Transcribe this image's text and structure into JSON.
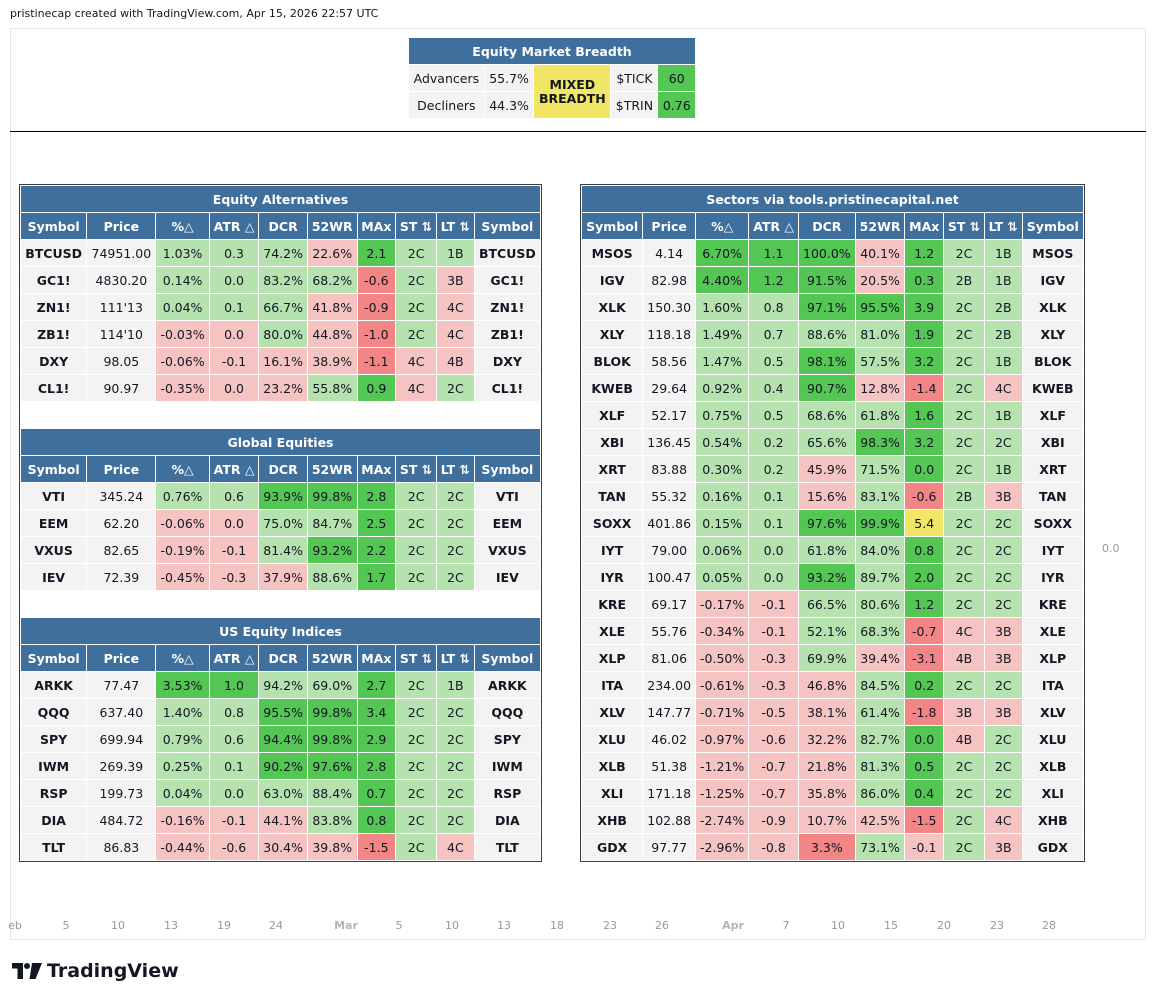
{
  "header": "pristinecap created with TradingView.com, Apr 15, 2026 22:57 UTC",
  "brand": "TradingView",
  "zero_label": "0.0",
  "colors": {
    "header_bg": "#3f6f9c",
    "green_light": "#b6e2b0",
    "green": "#53c653",
    "red_light": "#f6c3c3",
    "red": "#f28686",
    "yellow": "#f1e666",
    "neutral": "#f3f3f3"
  },
  "breadth": {
    "title": "Equity Market Breadth",
    "advancers_label": "Advancers",
    "advancers": "55.7%",
    "decliners_label": "Decliners",
    "decliners": "44.3%",
    "status_l1": "MIXED",
    "status_l2": "BREADTH",
    "tick_label": "$TICK",
    "tick": "60",
    "trin_label": "$TRIN",
    "trin": "0.76"
  },
  "columns": [
    "Symbol",
    "Price",
    "%△",
    "ATR △",
    "DCR",
    "52WR",
    "MAx",
    "ST ⇅",
    "LT ⇅",
    "Symbol"
  ],
  "left_sections": [
    {
      "title": "Equity Alternatives",
      "rows": [
        {
          "sym": "BTCUSD",
          "price": "74951.00",
          "vals": [
            "1.03%",
            "0.3",
            "74.2%",
            "22.6%",
            "2.1",
            "2C",
            "1B"
          ],
          "c": [
            "g1",
            "g1",
            "g1",
            "r1",
            "g2",
            "g1",
            "g1"
          ]
        },
        {
          "sym": "GC1!",
          "price": "4830.20",
          "vals": [
            "0.14%",
            "0.0",
            "83.2%",
            "68.2%",
            "-0.6",
            "2C",
            "3B"
          ],
          "c": [
            "g1",
            "g1",
            "g1",
            "g1",
            "r2",
            "g1",
            "r1"
          ]
        },
        {
          "sym": "ZN1!",
          "price": "111'13",
          "vals": [
            "0.04%",
            "0.1",
            "66.7%",
            "41.8%",
            "-0.9",
            "2C",
            "4C"
          ],
          "c": [
            "g1",
            "g1",
            "g1",
            "r1",
            "r2",
            "g1",
            "r1"
          ]
        },
        {
          "sym": "ZB1!",
          "price": "114'10",
          "vals": [
            "-0.03%",
            "0.0",
            "80.0%",
            "44.8%",
            "-1.0",
            "2C",
            "4C"
          ],
          "c": [
            "r1",
            "r1",
            "g1",
            "r1",
            "r2",
            "g1",
            "r1"
          ]
        },
        {
          "sym": "DXY",
          "price": "98.05",
          "vals": [
            "-0.06%",
            "-0.1",
            "16.1%",
            "38.9%",
            "-1.1",
            "4C",
            "4B"
          ],
          "c": [
            "r1",
            "r1",
            "r1",
            "r1",
            "r2",
            "r1",
            "r1"
          ]
        },
        {
          "sym": "CL1!",
          "price": "90.97",
          "vals": [
            "-0.35%",
            "0.0",
            "23.2%",
            "55.8%",
            "0.9",
            "4C",
            "2C"
          ],
          "c": [
            "r1",
            "r1",
            "r1",
            "g1",
            "g2",
            "r1",
            "g1"
          ]
        }
      ]
    },
    {
      "title": "Global Equities",
      "rows": [
        {
          "sym": "VTI",
          "price": "345.24",
          "vals": [
            "0.76%",
            "0.6",
            "93.9%",
            "99.8%",
            "2.8",
            "2C",
            "2C"
          ],
          "c": [
            "g1",
            "g1",
            "g2",
            "g2",
            "g2",
            "g1",
            "g1"
          ]
        },
        {
          "sym": "EEM",
          "price": "62.20",
          "vals": [
            "-0.06%",
            "0.0",
            "75.0%",
            "84.7%",
            "2.5",
            "2C",
            "2C"
          ],
          "c": [
            "r1",
            "r1",
            "g1",
            "g1",
            "g2",
            "g1",
            "g1"
          ]
        },
        {
          "sym": "VXUS",
          "price": "82.65",
          "vals": [
            "-0.19%",
            "-0.1",
            "81.4%",
            "93.2%",
            "2.2",
            "2C",
            "2C"
          ],
          "c": [
            "r1",
            "r1",
            "g1",
            "g2",
            "g2",
            "g1",
            "g1"
          ]
        },
        {
          "sym": "IEV",
          "price": "72.39",
          "vals": [
            "-0.45%",
            "-0.3",
            "37.9%",
            "88.6%",
            "1.7",
            "2C",
            "2C"
          ],
          "c": [
            "r1",
            "r1",
            "r1",
            "g1",
            "g2",
            "g1",
            "g1"
          ]
        }
      ]
    },
    {
      "title": "US Equity Indices",
      "rows": [
        {
          "sym": "ARKK",
          "price": "77.47",
          "vals": [
            "3.53%",
            "1.0",
            "94.2%",
            "69.0%",
            "2.7",
            "2C",
            "1B"
          ],
          "c": [
            "g2",
            "g2",
            "g1",
            "g1",
            "g2",
            "g1",
            "g1"
          ]
        },
        {
          "sym": "QQQ",
          "price": "637.40",
          "vals": [
            "1.40%",
            "0.8",
            "95.5%",
            "99.8%",
            "3.4",
            "2C",
            "2C"
          ],
          "c": [
            "g1",
            "g1",
            "g2",
            "g2",
            "g2",
            "g1",
            "g1"
          ]
        },
        {
          "sym": "SPY",
          "price": "699.94",
          "vals": [
            "0.79%",
            "0.6",
            "94.4%",
            "99.8%",
            "2.9",
            "2C",
            "2C"
          ],
          "c": [
            "g1",
            "g1",
            "g2",
            "g2",
            "g2",
            "g1",
            "g1"
          ]
        },
        {
          "sym": "IWM",
          "price": "269.39",
          "vals": [
            "0.25%",
            "0.1",
            "90.2%",
            "97.6%",
            "2.8",
            "2C",
            "2C"
          ],
          "c": [
            "g1",
            "g1",
            "g2",
            "g2",
            "g2",
            "g1",
            "g1"
          ]
        },
        {
          "sym": "RSP",
          "price": "199.73",
          "vals": [
            "0.04%",
            "0.0",
            "63.0%",
            "88.4%",
            "0.7",
            "2C",
            "2C"
          ],
          "c": [
            "g1",
            "g1",
            "g1",
            "g1",
            "g2",
            "g1",
            "g1"
          ]
        },
        {
          "sym": "DIA",
          "price": "484.72",
          "vals": [
            "-0.16%",
            "-0.1",
            "44.1%",
            "83.8%",
            "0.8",
            "2C",
            "2C"
          ],
          "c": [
            "r1",
            "r1",
            "r1",
            "g1",
            "g2",
            "g1",
            "g1"
          ]
        },
        {
          "sym": "TLT",
          "price": "86.83",
          "vals": [
            "-0.44%",
            "-0.6",
            "30.4%",
            "39.8%",
            "-1.5",
            "2C",
            "4C"
          ],
          "c": [
            "r1",
            "r1",
            "r1",
            "r1",
            "r2",
            "g1",
            "r1"
          ]
        }
      ]
    }
  ],
  "sectors": {
    "title": "Sectors via tools.pristinecapital.net",
    "rows": [
      {
        "sym": "MSOS",
        "price": "4.14",
        "vals": [
          "6.70%",
          "1.1",
          "100.0%",
          "40.1%",
          "1.2",
          "2C",
          "1B"
        ],
        "c": [
          "g2",
          "g2",
          "g2",
          "r1",
          "g2",
          "g1",
          "g1"
        ]
      },
      {
        "sym": "IGV",
        "price": "82.98",
        "vals": [
          "4.40%",
          "1.2",
          "91.5%",
          "20.5%",
          "0.3",
          "2B",
          "1B"
        ],
        "c": [
          "g2",
          "g2",
          "g2",
          "r1",
          "g2",
          "g1",
          "g1"
        ]
      },
      {
        "sym": "XLK",
        "price": "150.30",
        "vals": [
          "1.60%",
          "0.8",
          "97.1%",
          "95.5%",
          "3.9",
          "2C",
          "2B"
        ],
        "c": [
          "g1",
          "g1",
          "g2",
          "g2",
          "g2",
          "g1",
          "g1"
        ]
      },
      {
        "sym": "XLY",
        "price": "118.18",
        "vals": [
          "1.49%",
          "0.7",
          "88.6%",
          "81.0%",
          "1.9",
          "2C",
          "2B"
        ],
        "c": [
          "g1",
          "g1",
          "g1",
          "g1",
          "g2",
          "g1",
          "g1"
        ]
      },
      {
        "sym": "BLOK",
        "price": "58.56",
        "vals": [
          "1.47%",
          "0.5",
          "98.1%",
          "57.5%",
          "3.2",
          "2C",
          "1B"
        ],
        "c": [
          "g1",
          "g1",
          "g2",
          "g1",
          "g2",
          "g1",
          "g1"
        ]
      },
      {
        "sym": "KWEB",
        "price": "29.64",
        "vals": [
          "0.92%",
          "0.4",
          "90.7%",
          "12.8%",
          "-1.4",
          "2C",
          "4C"
        ],
        "c": [
          "g1",
          "g1",
          "g2",
          "r1",
          "r2",
          "g1",
          "r1"
        ]
      },
      {
        "sym": "XLF",
        "price": "52.17",
        "vals": [
          "0.75%",
          "0.5",
          "68.6%",
          "61.8%",
          "1.6",
          "2C",
          "1B"
        ],
        "c": [
          "g1",
          "g1",
          "g1",
          "g1",
          "g2",
          "g1",
          "g1"
        ]
      },
      {
        "sym": "XBI",
        "price": "136.45",
        "vals": [
          "0.54%",
          "0.2",
          "65.6%",
          "98.3%",
          "3.2",
          "2C",
          "2C"
        ],
        "c": [
          "g1",
          "g1",
          "g1",
          "g2",
          "g2",
          "g1",
          "g1"
        ]
      },
      {
        "sym": "XRT",
        "price": "83.88",
        "vals": [
          "0.30%",
          "0.2",
          "45.9%",
          "71.5%",
          "0.0",
          "2C",
          "1B"
        ],
        "c": [
          "g1",
          "g1",
          "r1",
          "g1",
          "g2",
          "g1",
          "g1"
        ]
      },
      {
        "sym": "TAN",
        "price": "55.32",
        "vals": [
          "0.16%",
          "0.1",
          "15.6%",
          "83.1%",
          "-0.6",
          "2B",
          "3B"
        ],
        "c": [
          "g1",
          "g1",
          "r1",
          "g1",
          "r2",
          "g1",
          "r1"
        ]
      },
      {
        "sym": "SOXX",
        "price": "401.86",
        "vals": [
          "0.15%",
          "0.1",
          "97.6%",
          "99.9%",
          "5.4",
          "2C",
          "2C"
        ],
        "c": [
          "g1",
          "g1",
          "g2",
          "g2",
          "y1",
          "g1",
          "g1"
        ]
      },
      {
        "sym": "IYT",
        "price": "79.00",
        "vals": [
          "0.06%",
          "0.0",
          "61.8%",
          "84.0%",
          "0.8",
          "2C",
          "2C"
        ],
        "c": [
          "g1",
          "g1",
          "g1",
          "g1",
          "g2",
          "g1",
          "g1"
        ]
      },
      {
        "sym": "IYR",
        "price": "100.47",
        "vals": [
          "0.05%",
          "0.0",
          "93.2%",
          "89.7%",
          "2.0",
          "2C",
          "2C"
        ],
        "c": [
          "g1",
          "g1",
          "g2",
          "g1",
          "g2",
          "g1",
          "g1"
        ]
      },
      {
        "sym": "KRE",
        "price": "69.17",
        "vals": [
          "-0.17%",
          "-0.1",
          "66.5%",
          "80.6%",
          "1.2",
          "2C",
          "2C"
        ],
        "c": [
          "r1",
          "r1",
          "g1",
          "g1",
          "g2",
          "g1",
          "g1"
        ]
      },
      {
        "sym": "XLE",
        "price": "55.76",
        "vals": [
          "-0.34%",
          "-0.1",
          "52.1%",
          "68.3%",
          "-0.7",
          "4C",
          "3B"
        ],
        "c": [
          "r1",
          "r1",
          "g1",
          "g1",
          "r2",
          "r1",
          "r1"
        ]
      },
      {
        "sym": "XLP",
        "price": "81.06",
        "vals": [
          "-0.50%",
          "-0.3",
          "69.9%",
          "39.4%",
          "-3.1",
          "4B",
          "3B"
        ],
        "c": [
          "r1",
          "r1",
          "g1",
          "r1",
          "r2",
          "r1",
          "r1"
        ]
      },
      {
        "sym": "ITA",
        "price": "234.00",
        "vals": [
          "-0.61%",
          "-0.3",
          "46.8%",
          "84.5%",
          "0.2",
          "2C",
          "2C"
        ],
        "c": [
          "r1",
          "r1",
          "r1",
          "g1",
          "g2",
          "g1",
          "g1"
        ]
      },
      {
        "sym": "XLV",
        "price": "147.77",
        "vals": [
          "-0.71%",
          "-0.5",
          "38.1%",
          "61.4%",
          "-1.8",
          "3B",
          "3B"
        ],
        "c": [
          "r1",
          "r1",
          "r1",
          "g1",
          "r2",
          "r1",
          "r1"
        ]
      },
      {
        "sym": "XLU",
        "price": "46.02",
        "vals": [
          "-0.97%",
          "-0.6",
          "32.2%",
          "82.7%",
          "0.0",
          "4B",
          "2C"
        ],
        "c": [
          "r1",
          "r1",
          "r1",
          "g1",
          "g2",
          "r1",
          "g1"
        ]
      },
      {
        "sym": "XLB",
        "price": "51.38",
        "vals": [
          "-1.21%",
          "-0.7",
          "21.8%",
          "81.3%",
          "0.5",
          "2C",
          "2C"
        ],
        "c": [
          "r1",
          "r1",
          "r1",
          "g1",
          "g2",
          "g1",
          "g1"
        ]
      },
      {
        "sym": "XLI",
        "price": "171.18",
        "vals": [
          "-1.25%",
          "-0.7",
          "35.8%",
          "86.0%",
          "0.4",
          "2C",
          "2C"
        ],
        "c": [
          "r1",
          "r1",
          "r1",
          "g1",
          "g2",
          "g1",
          "g1"
        ]
      },
      {
        "sym": "XHB",
        "price": "102.88",
        "vals": [
          "-2.74%",
          "-0.9",
          "10.7%",
          "42.5%",
          "-1.5",
          "2C",
          "4C"
        ],
        "c": [
          "r1",
          "r1",
          "r1",
          "r1",
          "r2",
          "g1",
          "r1"
        ]
      },
      {
        "sym": "GDX",
        "price": "97.77",
        "vals": [
          "-2.96%",
          "-0.8",
          "3.3%",
          "73.1%",
          "-0.1",
          "2C",
          "3B"
        ],
        "c": [
          "r1",
          "r1",
          "r2",
          "g1",
          "r1",
          "g1",
          "r1"
        ]
      }
    ]
  },
  "axis_ticks": [
    {
      "label": "eb",
      "bold": false
    },
    {
      "label": "5",
      "bold": false
    },
    {
      "label": "10",
      "bold": false
    },
    {
      "label": "13",
      "bold": false
    },
    {
      "label": "19",
      "bold": false
    },
    {
      "label": "24",
      "bold": false
    },
    {
      "label": "Mar",
      "bold": true
    },
    {
      "label": "5",
      "bold": false
    },
    {
      "label": "10",
      "bold": false
    },
    {
      "label": "13",
      "bold": false
    },
    {
      "label": "18",
      "bold": false
    },
    {
      "label": "23",
      "bold": false
    },
    {
      "label": "26",
      "bold": false
    },
    {
      "label": "Apr",
      "bold": true
    },
    {
      "label": "7",
      "bold": false
    },
    {
      "label": "10",
      "bold": false
    },
    {
      "label": "15",
      "bold": false
    },
    {
      "label": "20",
      "bold": false
    },
    {
      "label": "23",
      "bold": false
    },
    {
      "label": "28",
      "bold": false
    }
  ]
}
